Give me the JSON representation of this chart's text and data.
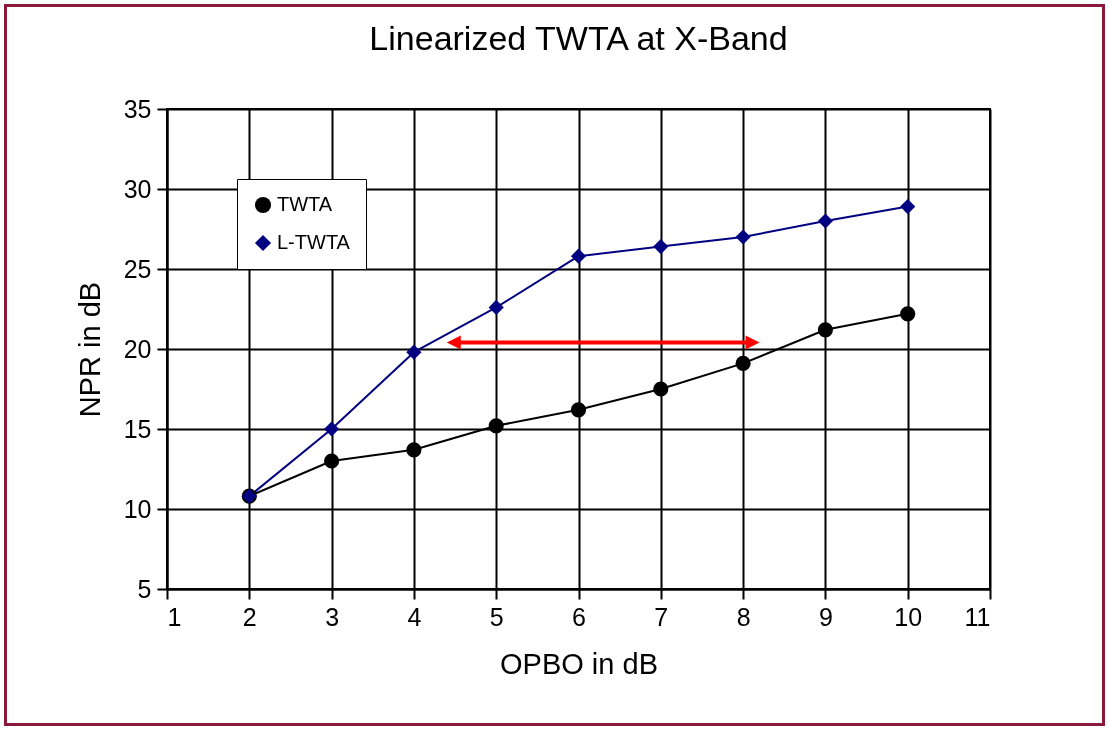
{
  "chart_data": {
    "type": "line",
    "title": "Linearized TWTA at X-Band",
    "xlabel": "OPBO in dB",
    "ylabel": "NPR in dB",
    "x": [
      2,
      3,
      4,
      5,
      6,
      7,
      8,
      9,
      10
    ],
    "series": [
      {
        "name": "TWTA",
        "color": "#000000",
        "marker": "circle",
        "values": [
          10.8,
          13.0,
          13.7,
          15.2,
          16.2,
          17.5,
          19.1,
          21.2,
          22.2
        ]
      },
      {
        "name": "L-TWTA",
        "color": "#000080",
        "marker": "diamond",
        "values": [
          10.8,
          15.0,
          19.8,
          22.6,
          25.8,
          26.4,
          27.0,
          28.0,
          28.9
        ]
      }
    ],
    "xlim": [
      1,
      11
    ],
    "xticks": [
      1,
      2,
      3,
      4,
      5,
      6,
      7,
      8,
      9,
      10,
      11
    ],
    "ylim": [
      5,
      35
    ],
    "yticks": [
      5,
      10,
      15,
      20,
      25,
      30,
      35
    ],
    "grid": true,
    "legend": "top left",
    "line_style": "solid"
  }
}
